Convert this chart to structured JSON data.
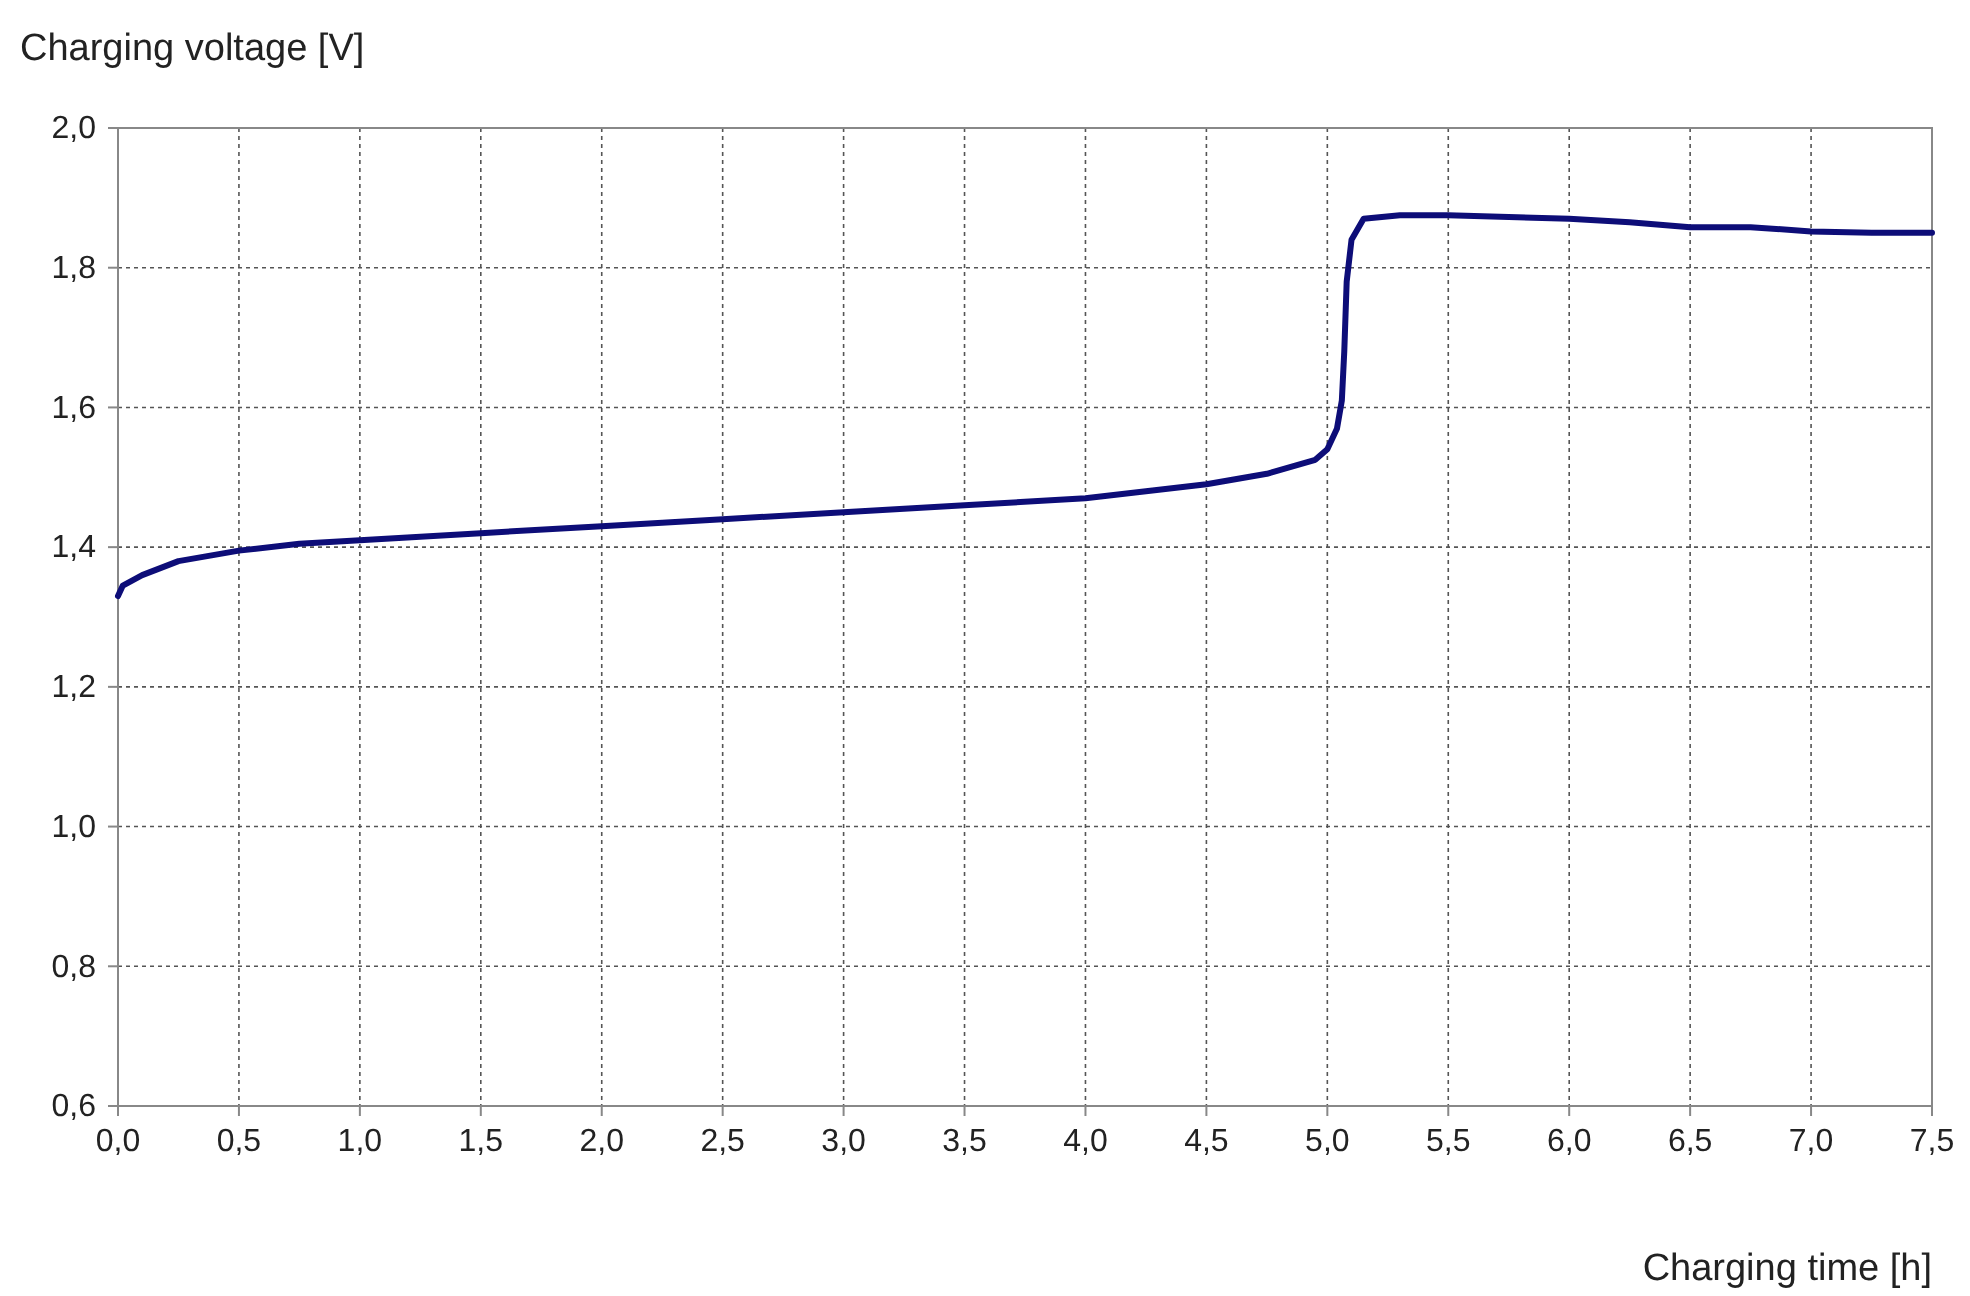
{
  "chart_data": {
    "type": "line",
    "xlabel": "Charging time [h]",
    "ylabel": "Charging voltage [V]",
    "x": [
      0,
      0.02,
      0.1,
      0.25,
      0.5,
      0.75,
      1.0,
      1.5,
      2.0,
      2.5,
      3.0,
      3.5,
      4.0,
      4.25,
      4.5,
      4.75,
      4.95,
      5.0,
      5.04,
      5.06,
      5.07,
      5.08,
      5.1,
      5.15,
      5.3,
      5.5,
      6.0,
      6.25,
      6.5,
      6.75,
      7.0,
      7.25,
      7.5
    ],
    "series": [
      {
        "color": "#0d0d78",
        "values": [
          1.33,
          1.345,
          1.36,
          1.38,
          1.395,
          1.405,
          1.41,
          1.42,
          1.43,
          1.44,
          1.45,
          1.46,
          1.47,
          1.48,
          1.49,
          1.505,
          1.525,
          1.54,
          1.57,
          1.61,
          1.68,
          1.78,
          1.84,
          1.87,
          1.875,
          1.875,
          1.87,
          1.865,
          1.858,
          1.858,
          1.852,
          1.85,
          1.85
        ]
      }
    ],
    "xlim": [
      0,
      7.5
    ],
    "ylim": [
      0.6,
      2.0
    ],
    "xticks": [
      {
        "value": 0,
        "label": "0,0"
      },
      {
        "value": 0.5,
        "label": "0,5"
      },
      {
        "value": 1,
        "label": "1,0"
      },
      {
        "value": 1.5,
        "label": "1,5"
      },
      {
        "value": 2,
        "label": "2,0"
      },
      {
        "value": 2.5,
        "label": "2,5"
      },
      {
        "value": 3,
        "label": "3,0"
      },
      {
        "value": 3.5,
        "label": "3,5"
      },
      {
        "value": 4,
        "label": "4,0"
      },
      {
        "value": 4.5,
        "label": "4,5"
      },
      {
        "value": 5,
        "label": "5,0"
      },
      {
        "value": 5.5,
        "label": "5,5"
      },
      {
        "value": 6,
        "label": "6,0"
      },
      {
        "value": 6.5,
        "label": "6,5"
      },
      {
        "value": 7,
        "label": "7,0"
      },
      {
        "value": 7.5,
        "label": "7,5"
      }
    ],
    "yticks": [
      {
        "value": 0.6,
        "label": "0,6"
      },
      {
        "value": 0.8,
        "label": "0,8"
      },
      {
        "value": 1.0,
        "label": "1,0"
      },
      {
        "value": 1.2,
        "label": "1,2"
      },
      {
        "value": 1.4,
        "label": "1,4"
      },
      {
        "value": 1.6,
        "label": "1,6"
      },
      {
        "value": 1.8,
        "label": "1,8"
      },
      {
        "value": 2.0,
        "label": "2,0"
      }
    ],
    "grid": true,
    "line_style": "solid",
    "marker": "none"
  }
}
